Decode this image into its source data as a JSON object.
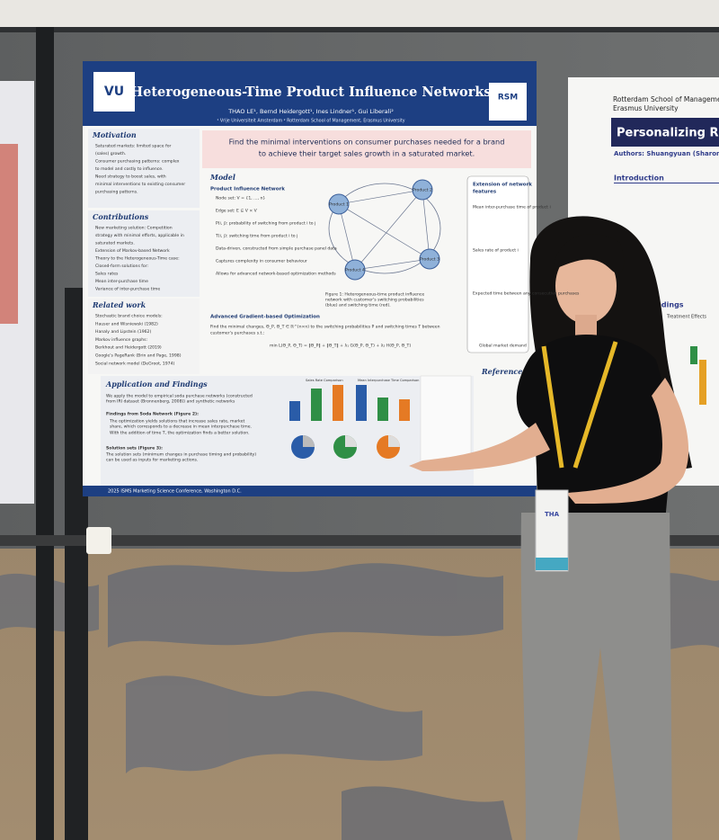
{
  "poster": {
    "logo_left": "VU",
    "logo_right": "RSM",
    "title": "Heterogeneous-Time Product Influence Networks",
    "authors": "THAO LE¹, Bernd Heidergott¹, Ines Lindner¹, Gui Liberali²",
    "affiliations": "¹ Vrije Universiteit Amsterdam     ² Rotterdam School of Management, Erasmus University",
    "headline": [
      "Find the minimal interventions on consumer purchases needed for a brand",
      "to achieve their target sales growth in a saturated market."
    ],
    "motivation": {
      "heading": "Motivation",
      "items": [
        "Saturated markets: limited space for",
        "(sales) growth.",
        "Consumer purchasing patterns: complex",
        "to model and costly to influence.",
        "Need strategy to boost sales, with",
        "minimal interventions to existing consumer",
        "purchasing patterns."
      ]
    },
    "contributions": {
      "heading": "Contributions",
      "items": [
        "New marketing solution: Competition",
        "strategy with minimal efforts, applicable in",
        "saturated markets.",
        "Extension of Markov-based Network",
        "Theory to the Heterogeneous-Time case:",
        "Closed-form solutions for:",
        "Sales rates",
        "Mean inter-purchase time",
        "Variance of inter-purchase time"
      ]
    },
    "related": {
      "heading": "Related work",
      "items": [
        "Stochastic brand choice models:",
        "Hauser and Wisniewski (1982)",
        "Hanaly and Lipstein (1962)",
        "Markov influence graphs:",
        "Berkhout and Heidergott (2019)",
        "Google's PageRank (Brin and Page, 1998)",
        "Social network model (DeGroot, 1974)"
      ]
    },
    "model": {
      "heading": "Model",
      "subheading": "Product Influence Network",
      "items": [
        "Node set: V = {1, ..., n}",
        "Edge set: E ⊆ V × V",
        "P(i, j): probability of switching from product i to j",
        "T(i, j): switching time from product i to j",
        "Data-driven, constructed from simple purchase panel data",
        "Captures complexity in consumer behaviour",
        "Allows for advanced network-based optimization methods"
      ],
      "nodes": [
        "Product 1",
        "Product 2",
        "Product 3",
        "Product 4"
      ],
      "caption": [
        "Figure 1: Heterogeneous-time product influence",
        "network with customer's switching probabilities",
        "(blue) and switching time (red)."
      ]
    },
    "extension": {
      "heading": [
        "Extension of network",
        "features"
      ],
      "items": [
        "Mean inter-purchase time of product i",
        "Sales rate of product i",
        "Expected time between any consecutive purchases"
      ]
    },
    "optimization": {
      "heading": "Advanced Gradient-based Optimization",
      "text": [
        "Find the minimal changes, Θ_P, Θ_T ∈ ℝ^(n×n) to the switching probabilities P and switching times T between",
        "customer's purchases s.t.:"
      ],
      "formula": "min L(Θ_P, Θ_T) = ‖Θ_P‖ + ‖Θ_T‖ + λ₁ G(Θ_P, Θ_T) + λ₂ H(Θ_P, Θ_T)",
      "global_label": "Global market demand"
    },
    "findings": {
      "heading": "Application and Findings",
      "intro": [
        "We apply the model to empirical soda purchase networks (constructed",
        "from IRI dataset (Bronnenberg, 2008)) and synthetic networks"
      ],
      "soda_heading": "Findings from Soda Network (Figure 2):",
      "soda_items": [
        "The optimization yields solutions that increase sales rate, market",
        "share, which corresponds to a decrease in mean interpurchase time.",
        "With the addition of time T, the optimization finds a better solution."
      ],
      "sets_heading": "Solution sets (Figure 3):",
      "sets_items": [
        "The solution sets (minimum changes in purchase timing and probability)",
        "can be used as inputs for marketing actions."
      ],
      "chart_titles": [
        "Sales Rate Comparison",
        "Mean Interpurchase Time Comparison"
      ]
    },
    "references_heading": "References",
    "footer": "2025 ISMS Marketing Science Conference, Washington D.C."
  },
  "right_poster": {
    "institution": [
      "Rotterdam School of Management",
      "Erasmus University"
    ],
    "title": "Personalizing Rete",
    "authors": "Authors: Shuangyuan (Sharon) We",
    "intro_heading": "Introduction",
    "findings_heading": "Findings",
    "chart_label": "Treatment Effects"
  },
  "badge": {
    "name": "THA"
  }
}
